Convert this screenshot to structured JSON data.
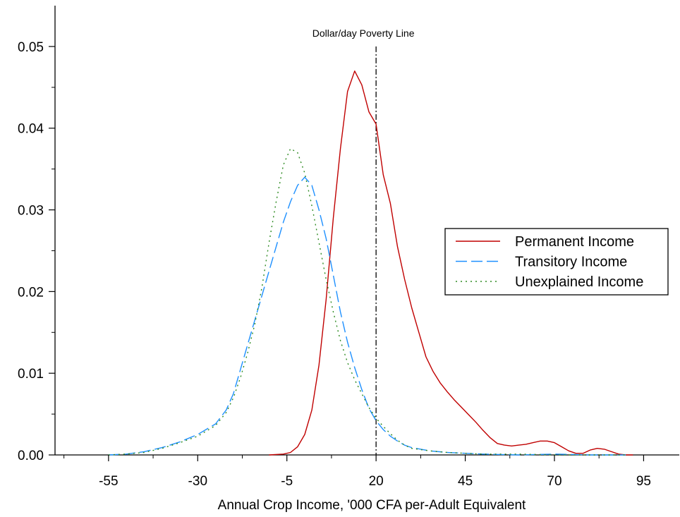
{
  "chart_data": {
    "type": "line",
    "title": "",
    "xlabel": "Annual Crop Income, '000 CFA per-Adult Equivalent",
    "ylabel": "",
    "xlim": [
      -70,
      105
    ],
    "ylim": [
      0,
      0.055
    ],
    "x_ticks": [
      -55,
      -30,
      -5,
      20,
      45,
      70,
      95
    ],
    "x_tick_labels": [
      "-55",
      "-30",
      "-5",
      "20",
      "45",
      "70",
      "95"
    ],
    "y_ticks": [
      0,
      0.01,
      0.02,
      0.03,
      0.04,
      0.05
    ],
    "y_tick_labels": [
      "0.00",
      "0.01",
      "0.02",
      "0.03",
      "0.04",
      "0.05"
    ],
    "grid": false,
    "legend_position": "right",
    "reference_line": {
      "x": 20,
      "label": "Dollar/day Poverty Line",
      "color": "#000000",
      "dash": "dash-dot"
    },
    "series": [
      {
        "name": "Permanent Income",
        "color": "#c00000",
        "dash": "solid",
        "x": [
          -10,
          -6,
          -4,
          -2,
          0,
          2,
          4,
          6,
          8,
          10,
          12,
          14,
          16,
          18,
          20,
          22,
          24,
          26,
          28,
          30,
          32,
          34,
          36,
          38,
          40,
          42,
          44,
          46,
          48,
          50,
          52,
          54,
          56,
          58,
          60,
          62,
          64,
          66,
          68,
          70,
          72,
          74,
          76,
          78,
          80,
          82,
          84,
          86,
          88,
          90,
          92
        ],
        "values": [
          0,
          0.0001,
          0.0003,
          0.001,
          0.0025,
          0.0055,
          0.011,
          0.019,
          0.029,
          0.0375,
          0.0445,
          0.047,
          0.0453,
          0.042,
          0.0405,
          0.0343,
          0.0308,
          0.0255,
          0.0215,
          0.018,
          0.015,
          0.012,
          0.0102,
          0.0088,
          0.0077,
          0.0067,
          0.0058,
          0.0049,
          0.004,
          0.003,
          0.0021,
          0.0014,
          0.0012,
          0.0011,
          0.0012,
          0.0013,
          0.0015,
          0.0017,
          0.0017,
          0.0015,
          0.001,
          0.0005,
          0.0002,
          0.0002,
          0.0006,
          0.0008,
          0.0007,
          0.0004,
          0.0001,
          0,
          0
        ]
      },
      {
        "name": "Transitory Income",
        "color": "#1e90ff",
        "dash": "long-dash",
        "x": [
          -55,
          -50,
          -45,
          -40,
          -35,
          -30,
          -25,
          -22,
          -20,
          -18,
          -16,
          -14,
          -12,
          -10,
          -8,
          -6,
          -4,
          -2,
          0,
          2,
          4,
          6,
          8,
          10,
          12,
          14,
          16,
          18,
          20,
          22,
          24,
          26,
          28,
          30,
          35,
          40,
          45,
          50,
          60,
          70,
          80,
          90
        ],
        "values": [
          0,
          0.0001,
          0.0004,
          0.0009,
          0.0016,
          0.0025,
          0.0038,
          0.0055,
          0.0075,
          0.0105,
          0.0135,
          0.0165,
          0.0195,
          0.0225,
          0.0255,
          0.0285,
          0.031,
          0.033,
          0.034,
          0.033,
          0.03,
          0.0265,
          0.022,
          0.0175,
          0.0138,
          0.0107,
          0.008,
          0.0057,
          0.0042,
          0.0031,
          0.0023,
          0.0017,
          0.0012,
          0.0009,
          0.0005,
          0.0003,
          0.0002,
          0.0001,
          0,
          0.0001,
          0,
          0
        ]
      },
      {
        "name": "Unexplained Income",
        "color": "#2e8b22",
        "dash": "dotted",
        "x": [
          -55,
          -50,
          -45,
          -40,
          -35,
          -30,
          -25,
          -22,
          -20,
          -18,
          -16,
          -14,
          -12,
          -10,
          -8,
          -6,
          -4,
          -2,
          0,
          2,
          4,
          6,
          8,
          10,
          12,
          14,
          16,
          18,
          20,
          22,
          24,
          26,
          28,
          30,
          35,
          40,
          45,
          50,
          60,
          70,
          80,
          90
        ],
        "values": [
          0,
          0.0001,
          0.0003,
          0.0008,
          0.0015,
          0.0023,
          0.0036,
          0.0052,
          0.007,
          0.0095,
          0.0125,
          0.016,
          0.0205,
          0.026,
          0.031,
          0.0355,
          0.0375,
          0.037,
          0.0345,
          0.0305,
          0.026,
          0.0215,
          0.0175,
          0.014,
          0.0113,
          0.0092,
          0.0075,
          0.0058,
          0.0045,
          0.0035,
          0.0026,
          0.0018,
          0.0012,
          0.0008,
          0.0005,
          0.0003,
          0.0002,
          0.0001,
          0.0001,
          0,
          0,
          0
        ]
      }
    ]
  }
}
